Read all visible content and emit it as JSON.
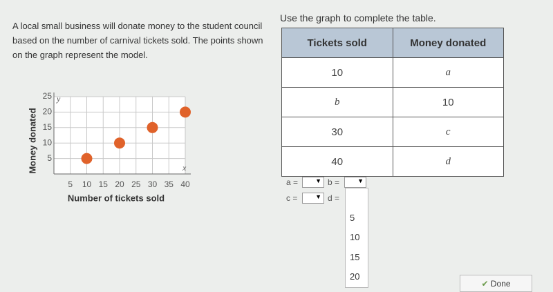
{
  "problem": "A local small business will donate money to the student council based on the number of carnival tickets sold. The points shown on the graph represent the model.",
  "instruction": "Use the graph to complete the table.",
  "graph": {
    "type": "scatter",
    "x_label": "Number of tickets sold",
    "y_label": "Money donated",
    "x_var": "x",
    "y_var": "y",
    "x": [
      10,
      20,
      30,
      40
    ],
    "y": [
      5,
      10,
      15,
      20
    ],
    "color": "#e0622a",
    "xlim": [
      0,
      40
    ],
    "ylim": [
      0,
      25
    ],
    "xticks": [
      5,
      10,
      15,
      20,
      25,
      30,
      35,
      40
    ],
    "yticks": [
      5,
      10,
      15,
      20,
      25
    ],
    "grid": true
  },
  "table": {
    "headers": [
      "Tickets sold",
      "Money donated"
    ],
    "rows": [
      [
        10,
        "a"
      ],
      [
        "b",
        10
      ],
      [
        30,
        "c"
      ],
      [
        40,
        "d"
      ]
    ]
  },
  "answers": [
    "a =",
    "b =",
    "c =",
    "d ="
  ],
  "dropdown_options": [
    5,
    10,
    15,
    20
  ],
  "done": "Done"
}
